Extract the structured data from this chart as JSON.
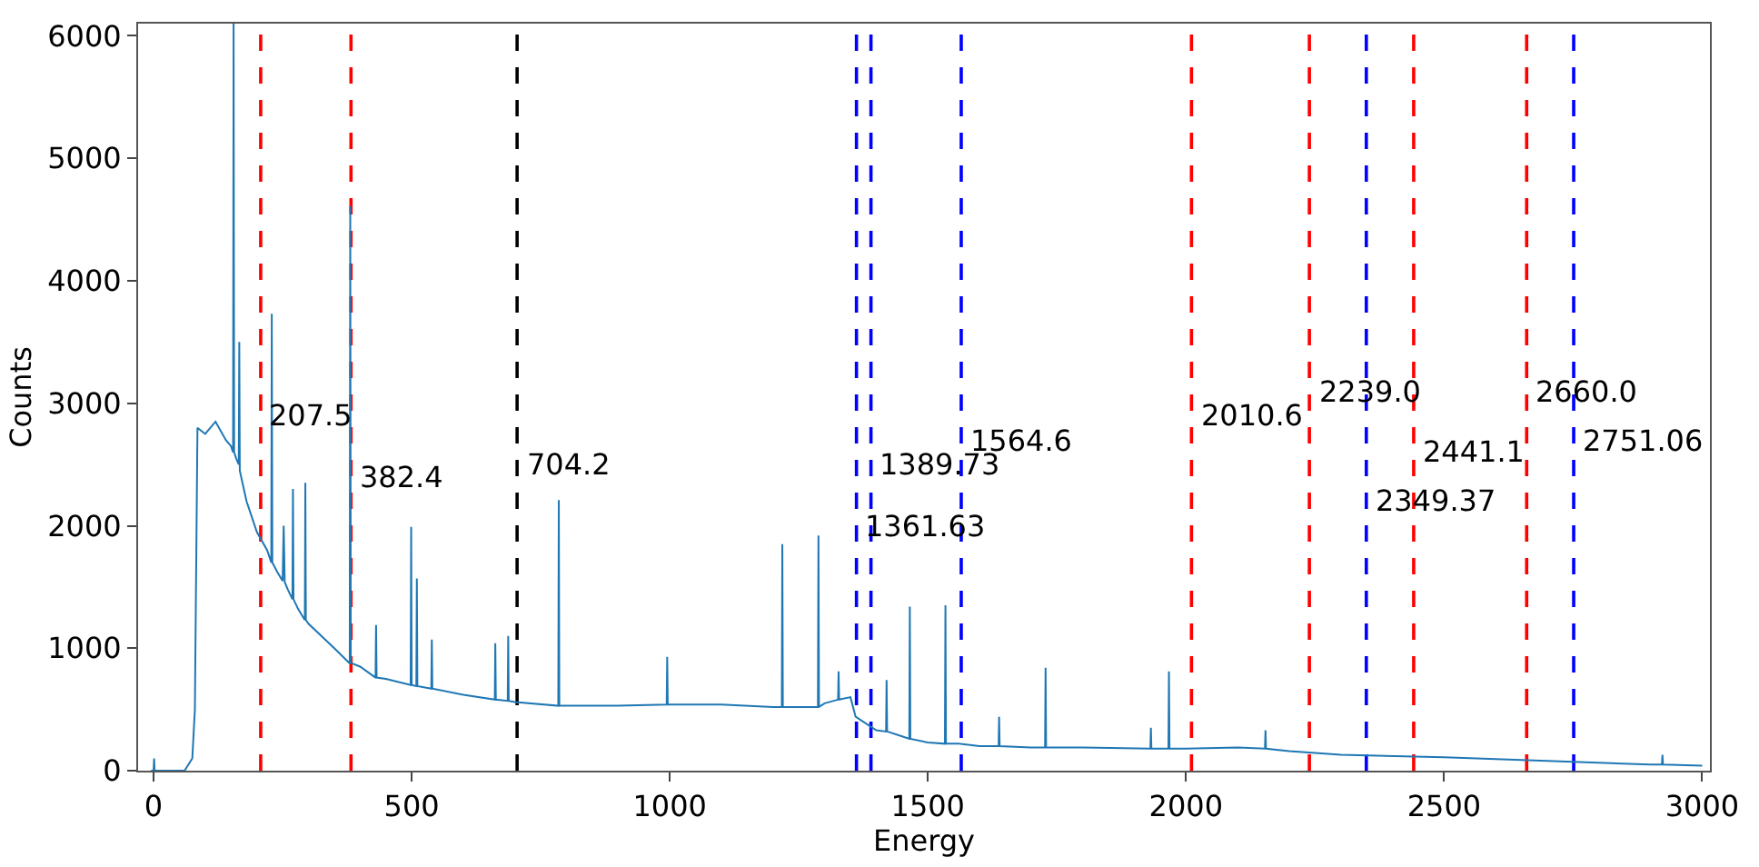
{
  "chart_data": {
    "type": "line",
    "xlabel": "Energy",
    "ylabel": "Counts",
    "x": [
      -5,
      0,
      1,
      2,
      60,
      75,
      80,
      85,
      100,
      120,
      140,
      150,
      154,
      155,
      156,
      160,
      165,
      166,
      167,
      180,
      200,
      220,
      228,
      229,
      230,
      240,
      250,
      252,
      254,
      260,
      269,
      270,
      271,
      280,
      293,
      294,
      295,
      300,
      350,
      379,
      380,
      381,
      382,
      400,
      430,
      431,
      432,
      450,
      498,
      499,
      500,
      509,
      510,
      511,
      538,
      539,
      540,
      600,
      661,
      662,
      663,
      686,
      687,
      688,
      700,
      784,
      785,
      786,
      800,
      900,
      994,
      995,
      996,
      1100,
      1200,
      1217,
      1218,
      1219,
      1250,
      1287,
      1288,
      1289,
      1300,
      1326,
      1327,
      1328,
      1350,
      1360,
      1400,
      1419,
      1420,
      1421,
      1450,
      1464,
      1465,
      1466,
      1500,
      1533,
      1534,
      1535,
      1560,
      1600,
      1637,
      1638,
      1639,
      1700,
      1727,
      1728,
      1729,
      1800,
      1931,
      1932,
      1933,
      1966,
      1967,
      1968,
      2000,
      2100,
      2153,
      2154,
      2155,
      2200,
      2300,
      2500,
      2700,
      2900,
      2922,
      2923,
      2924,
      3000
    ],
    "series": [
      {
        "color": "#1f77b4",
        "values": [
          0,
          0,
          100,
          0,
          0,
          100,
          500,
          2800,
          2750,
          2850,
          2700,
          2650,
          2600,
          6100,
          2600,
          2550,
          2500,
          3500,
          2450,
          2200,
          1950,
          1800,
          1700,
          3730,
          1700,
          1620,
          1550,
          2000,
          1540,
          1480,
          1400,
          2300,
          1400,
          1320,
          1230,
          2350,
          1230,
          1200,
          1000,
          880,
          880,
          4610,
          880,
          850,
          760,
          1190,
          760,
          750,
          700,
          1990,
          700,
          690,
          1570,
          690,
          670,
          1070,
          670,
          620,
          580,
          1040,
          580,
          570,
          1100,
          570,
          560,
          530,
          2210,
          530,
          530,
          530,
          540,
          930,
          540,
          540,
          520,
          520,
          1850,
          520,
          520,
          520,
          1920,
          520,
          550,
          580,
          810,
          580,
          600,
          440,
          330,
          320,
          740,
          320,
          280,
          260,
          1340,
          260,
          230,
          220,
          1350,
          220,
          220,
          200,
          200,
          440,
          200,
          190,
          190,
          840,
          190,
          190,
          180,
          350,
          180,
          180,
          810,
          180,
          180,
          190,
          180,
          330,
          180,
          160,
          130,
          110,
          80,
          50,
          50,
          130,
          50,
          40
        ]
      }
    ],
    "xlim": [
      -30,
      3015
    ],
    "ylim": [
      0,
      6100
    ],
    "xticks": [
      0,
      500,
      1000,
      1500,
      2000,
      2500,
      3000
    ],
    "yticks": [
      0,
      1000,
      2000,
      3000,
      4000,
      5000,
      6000
    ],
    "ref_lines": [
      {
        "axis": "x",
        "value": 207.5,
        "color": "#ff0000",
        "line_style": "dashed"
      },
      {
        "axis": "x",
        "value": 382.4,
        "color": "#ff0000",
        "line_style": "dashed"
      },
      {
        "axis": "x",
        "value": 704.2,
        "color": "#000000",
        "line_style": "dashed"
      },
      {
        "axis": "x",
        "value": 1361.63,
        "color": "#0000ff",
        "line_style": "dashed"
      },
      {
        "axis": "x",
        "value": 1389.73,
        "color": "#0000ff",
        "line_style": "dashed"
      },
      {
        "axis": "x",
        "value": 1564.6,
        "color": "#0000ff",
        "line_style": "dashed"
      },
      {
        "axis": "x",
        "value": 2010.6,
        "color": "#ff0000",
        "line_style": "dashed"
      },
      {
        "axis": "x",
        "value": 2239.0,
        "color": "#ff0000",
        "line_style": "dashed"
      },
      {
        "axis": "x",
        "value": 2349.37,
        "color": "#0000ff",
        "line_style": "dashed"
      },
      {
        "axis": "x",
        "value": 2441.1,
        "color": "#ff0000",
        "line_style": "dashed"
      },
      {
        "axis": "x",
        "value": 2660.0,
        "color": "#ff0000",
        "line_style": "dashed"
      },
      {
        "axis": "x",
        "value": 2751.06,
        "color": "#0000ff",
        "line_style": "dashed"
      }
    ],
    "annotations": [
      {
        "text": "207.5",
        "x": 207.5,
        "y": 2900
      },
      {
        "text": "382.4",
        "x": 382.4,
        "y": 2400
      },
      {
        "text": "704.2",
        "x": 704.2,
        "y": 2500
      },
      {
        "text": "1361.63",
        "x": 1361.63,
        "y": 2000
      },
      {
        "text": "1389.73",
        "x": 1389.73,
        "y": 2500
      },
      {
        "text": "1564.6",
        "x": 1564.6,
        "y": 2700
      },
      {
        "text": "2010.6",
        "x": 2010.6,
        "y": 2900
      },
      {
        "text": "2239.0",
        "x": 2239.0,
        "y": 3100
      },
      {
        "text": "2349.37",
        "x": 2349.37,
        "y": 2200
      },
      {
        "text": "2441.1",
        "x": 2441.1,
        "y": 2600
      },
      {
        "text": "2660.0",
        "x": 2660.0,
        "y": 3100
      },
      {
        "text": "2751.06",
        "x": 2751.06,
        "y": 2700
      }
    ]
  }
}
